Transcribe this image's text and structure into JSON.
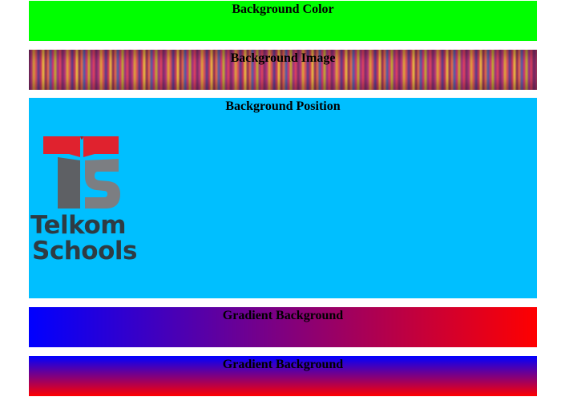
{
  "sections": {
    "background_color": {
      "title": "Background Color",
      "color": "#00ff00"
    },
    "background_image": {
      "title": "Background Image"
    },
    "background_position": {
      "title": "Background Position",
      "color": "#00bfff",
      "logo": {
        "line1": "Telkom",
        "line2": "Schools"
      }
    },
    "gradient_horizontal": {
      "title": "Gradient Background",
      "from": "#0000ff",
      "to": "#ff0000"
    },
    "gradient_vertical": {
      "title": "Gradient Background",
      "from": "#0000ff",
      "to": "#ff0000"
    }
  }
}
